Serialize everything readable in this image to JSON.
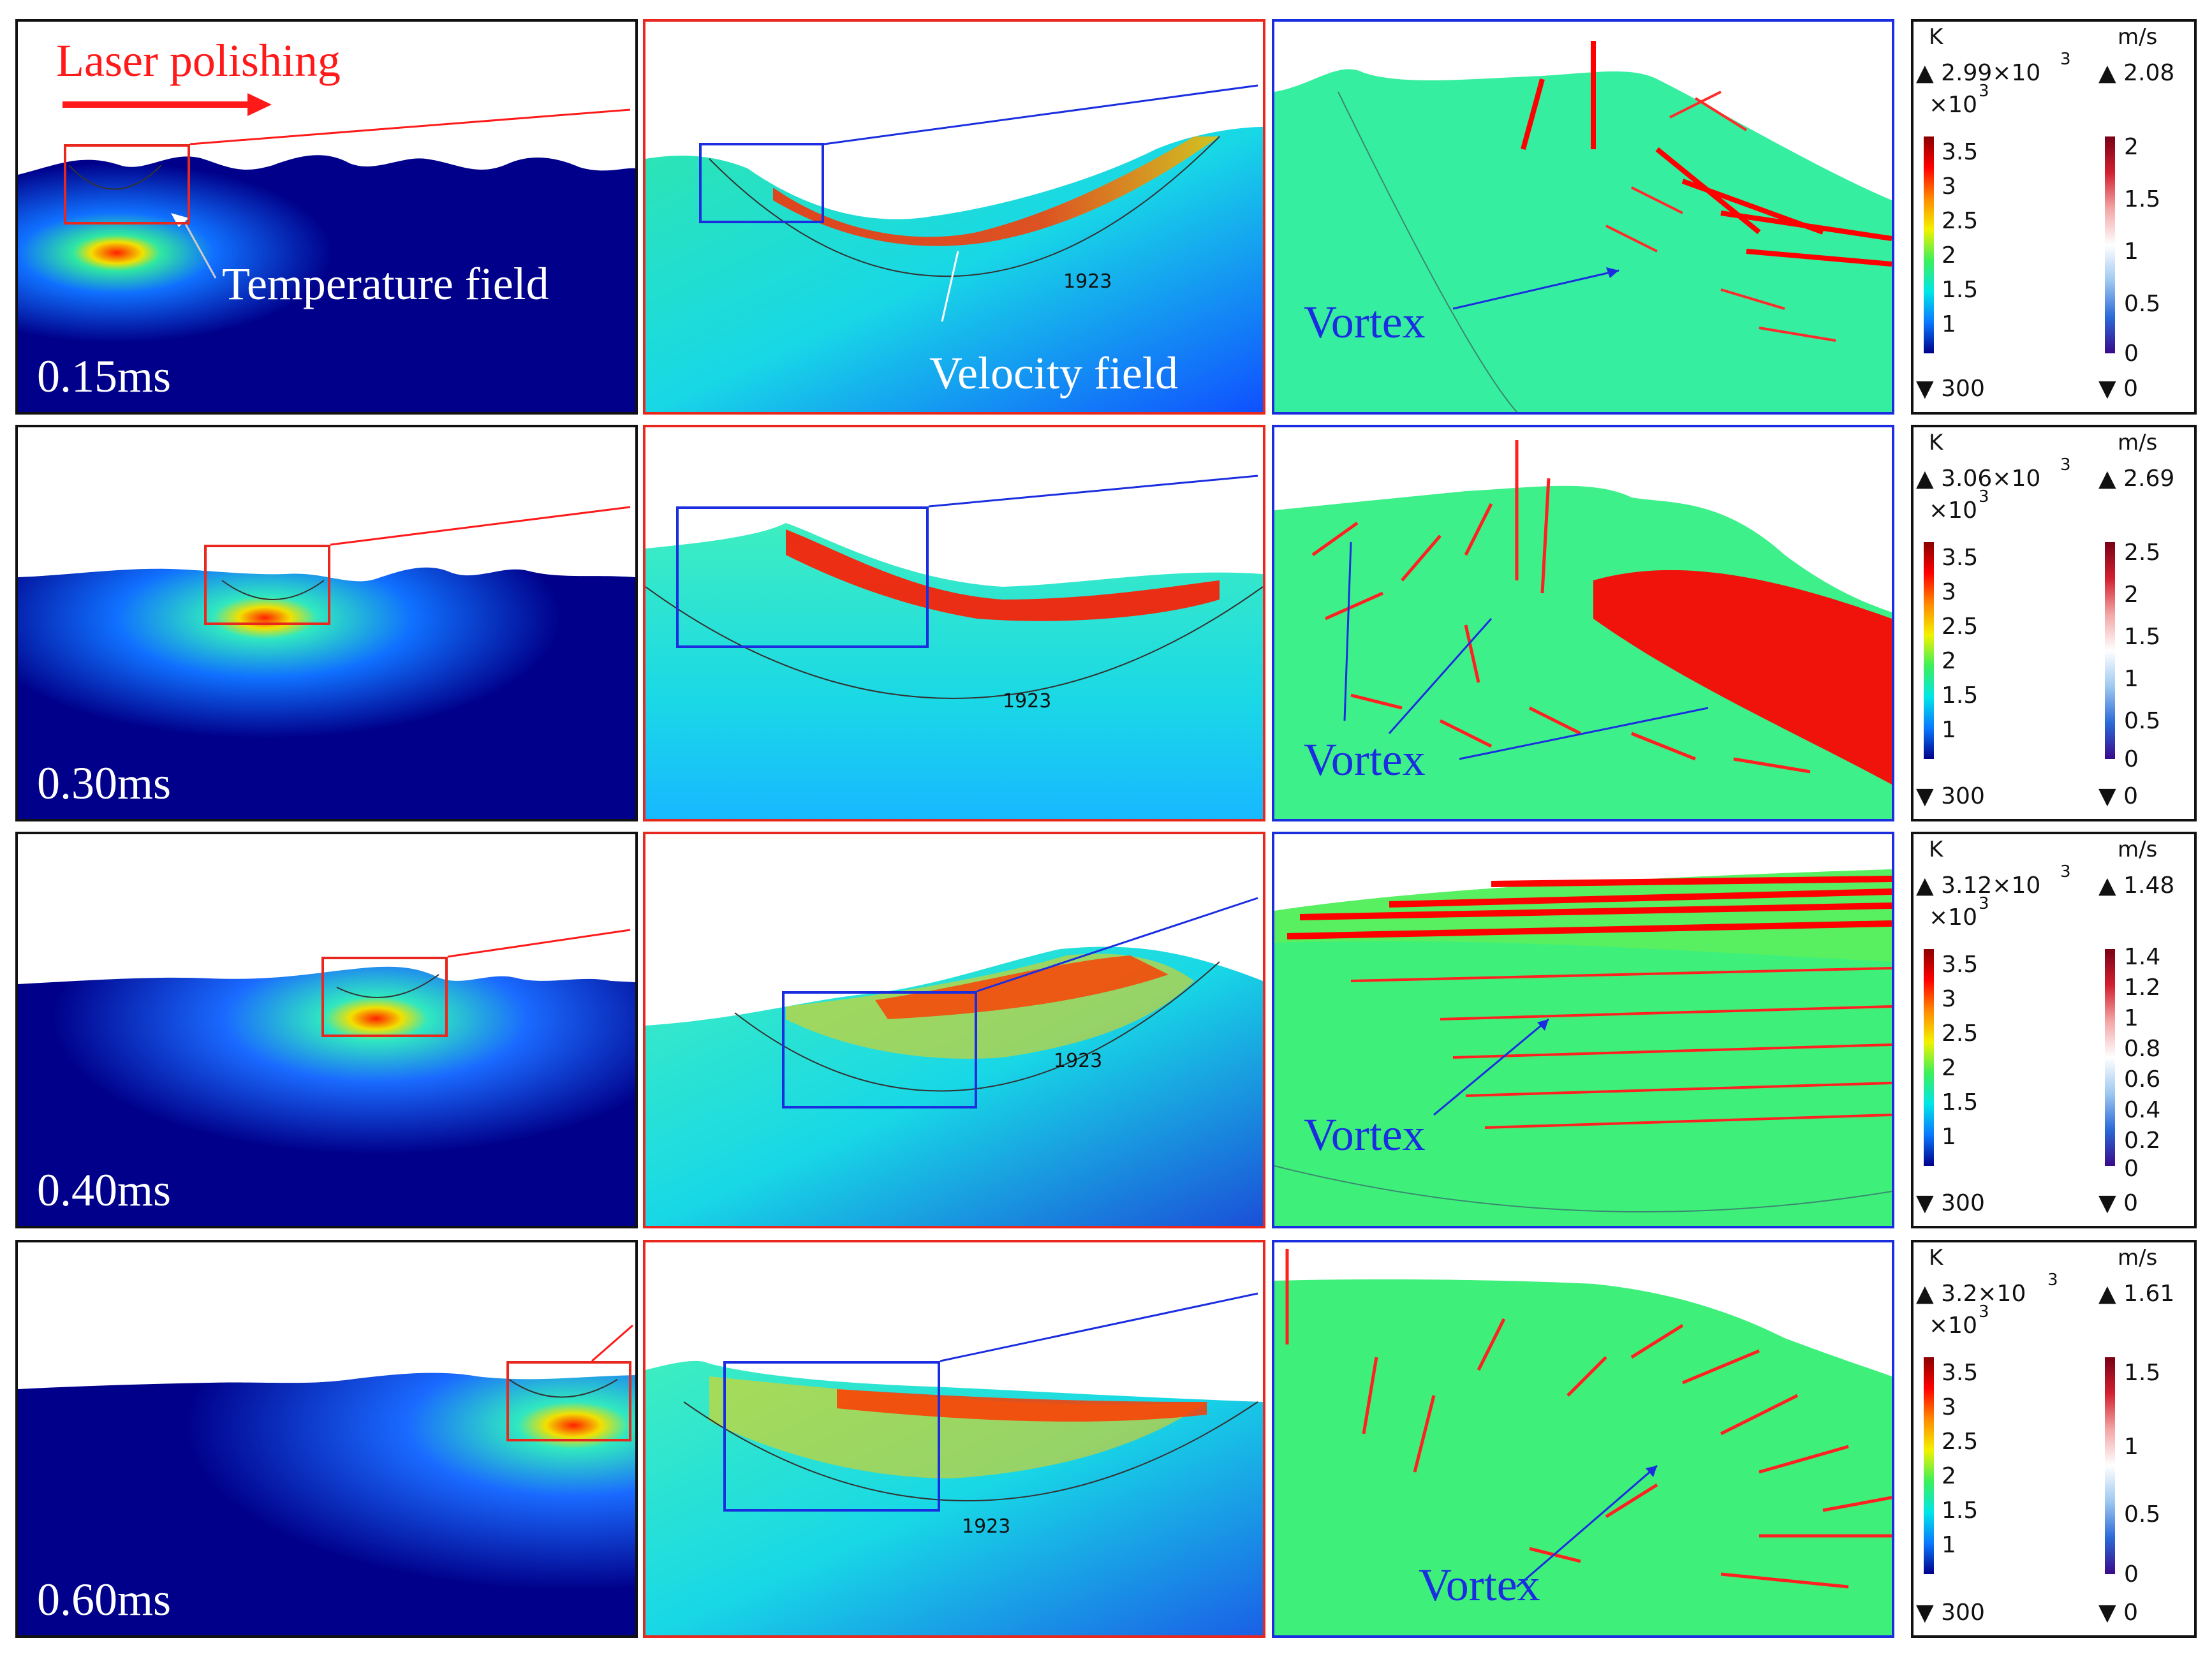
{
  "figure": {
    "title_annotation": "Laser polishing",
    "temperature_label": "Temperature field",
    "velocity_label": "Velocity field",
    "vortex_label": "Vortex",
    "contour_value": "1923"
  },
  "rows": [
    {
      "time": "0.15ms",
      "temp_unit": "K",
      "temp_max": "▲ 2.99×10",
      "temp_exp": "3",
      "temp_scale": "×10",
      "temp_scale_exp": "3",
      "temp_ticks": [
        "3.5",
        "3",
        "2.5",
        "2",
        "1.5",
        "1"
      ],
      "temp_min": "▼ 300",
      "vel_unit": "m/s",
      "vel_max": "▲ 2.08",
      "vel_ticks": [
        "2",
        "1.5",
        "1",
        "0.5",
        "0"
      ],
      "vel_min": "▼ 0"
    },
    {
      "time": "0.30ms",
      "temp_unit": "K",
      "temp_max": "▲ 3.06×10",
      "temp_exp": "3",
      "temp_scale": "×10",
      "temp_scale_exp": "3",
      "temp_ticks": [
        "3.5",
        "3",
        "2.5",
        "2",
        "1.5",
        "1"
      ],
      "temp_min": "▼ 300",
      "vel_unit": "m/s",
      "vel_max": "▲ 2.69",
      "vel_ticks": [
        "2.5",
        "2",
        "1.5",
        "1",
        "0.5",
        "0"
      ],
      "vel_min": "▼ 0"
    },
    {
      "time": "0.40ms",
      "temp_unit": "K",
      "temp_max": "▲ 3.12×10",
      "temp_exp": "3",
      "temp_scale": "×10",
      "temp_scale_exp": "3",
      "temp_ticks": [
        "3.5",
        "3",
        "2.5",
        "2",
        "1.5",
        "1"
      ],
      "temp_min": "▼ 300",
      "vel_unit": "m/s",
      "vel_max": "▲ 1.48",
      "vel_ticks": [
        "1.4",
        "1.2",
        "1",
        "0.8",
        "0.6",
        "0.4",
        "0.2",
        "0"
      ],
      "vel_min": "▼ 0"
    },
    {
      "time": "0.60ms",
      "temp_unit": "K",
      "temp_max": "▲ 3.2×10",
      "temp_exp": "3",
      "temp_scale": "×10",
      "temp_scale_exp": "3",
      "temp_ticks": [
        "3.5",
        "3",
        "2.5",
        "2",
        "1.5",
        "1"
      ],
      "temp_min": "▼ 300",
      "vel_unit": "m/s",
      "vel_max": "▲ 1.61",
      "vel_ticks": [
        "1.5",
        "1",
        "0.5",
        "0"
      ],
      "vel_min": "▼ 0"
    }
  ],
  "colors": {
    "substrate_dark": "#00008a",
    "substrate_mid": "#0a4cdc",
    "melt_cyan": "#1fe6c8",
    "melt_green": "#36f08c",
    "arrow_red": "#ff0000",
    "frame_red": "#e8281e",
    "frame_blue": "#1a2ee0"
  }
}
